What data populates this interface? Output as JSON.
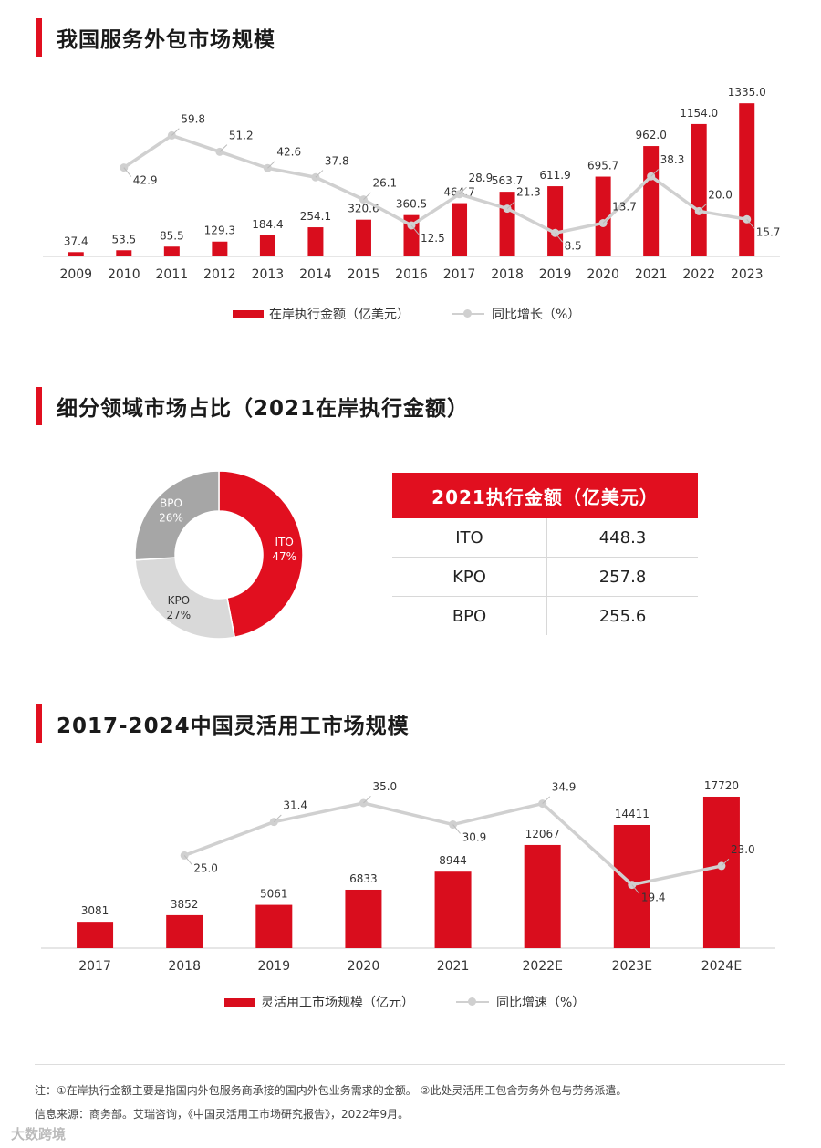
{
  "colors": {
    "accent": "#e10f1f",
    "bar": "#d90d1d",
    "line": "#d0d0d0",
    "grey": "#a6a6a6",
    "light": "#d9d9d9"
  },
  "section1": {
    "title": "我国服务外包市场规模",
    "legend_bar": "在岸执行金额（亿美元）",
    "legend_line": "同比增长（%）"
  },
  "section2": {
    "title": "细分领域市场占比（2021在岸执行金额）",
    "table_header": "2021执行金额（亿美元）",
    "rows": [
      {
        "label": "ITO",
        "value": "448.3"
      },
      {
        "label": "KPO",
        "value": "257.8"
      },
      {
        "label": "BPO",
        "value": "255.6"
      }
    ]
  },
  "section3": {
    "title": "2017-2024中国灵活用工市场规模",
    "legend_bar": "灵活用工市场规模（亿元）",
    "legend_line": "同比增速（%）"
  },
  "footer": {
    "note1": "注：①在岸执行金额主要是指国内外包服务商承接的国内外包业务需求的金额。 ②此处灵活用工包含劳务外包与劳务派遣。",
    "note2": "信息来源：商务部。艾瑞咨询，《中国灵活用工市场研究报告》，2022年9月。",
    "watermark": "大数跨境"
  },
  "chart_data": [
    {
      "type": "bar",
      "title": "我国服务外包市场规模",
      "categories": [
        "2009",
        "2010",
        "2011",
        "2012",
        "2013",
        "2014",
        "2015",
        "2016",
        "2017",
        "2018",
        "2019",
        "2020",
        "2021",
        "2022",
        "2023"
      ],
      "series": [
        {
          "name": "在岸执行金额（亿美元）",
          "kind": "bar",
          "values": [
            37.4,
            53.5,
            85.5,
            129.3,
            184.4,
            254.1,
            320.6,
            360.5,
            464.7,
            563.7,
            611.9,
            695.7,
            962.0,
            1154.0,
            1335.0
          ],
          "labels": [
            "37.4",
            "53.5",
            "85.5",
            "129.3",
            "184.4",
            "254.1",
            "320.6",
            "360.5",
            "464.7",
            "563.7",
            "611.9",
            "695.7",
            "962.0",
            "1154.0",
            "1335.0"
          ]
        },
        {
          "name": "同比增长（%）",
          "kind": "line",
          "values": [
            null,
            42.9,
            59.8,
            51.2,
            42.6,
            37.8,
            26.1,
            12.5,
            28.9,
            21.3,
            8.5,
            13.7,
            38.3,
            20.0,
            15.7
          ],
          "labels": [
            "",
            "42.9",
            "59.8",
            "51.2",
            "42.6",
            "37.8",
            "26.1",
            "12.5",
            "28.9",
            "21.3",
            "8.5",
            "13.7",
            "38.3",
            "20.0",
            "15.7"
          ]
        }
      ],
      "ylim": [
        0,
        1400
      ]
    },
    {
      "type": "pie",
      "title": "细分领域市场占比（2021在岸执行金额）",
      "slices": [
        {
          "label": "ITO",
          "percent": "47%",
          "value": 47
        },
        {
          "label": "KPO",
          "percent": "27%",
          "value": 27
        },
        {
          "label": "BPO",
          "percent": "26%",
          "value": 26
        }
      ]
    },
    {
      "type": "bar",
      "title": "2017-2024中国灵活用工市场规模",
      "categories": [
        "2017",
        "2018",
        "2019",
        "2020",
        "2021",
        "2022E",
        "2023E",
        "2024E"
      ],
      "series": [
        {
          "name": "灵活用工市场规模（亿元）",
          "kind": "bar",
          "values": [
            3081,
            3852,
            5061,
            6833,
            8944,
            12067,
            14411,
            17720
          ],
          "labels": [
            "3081",
            "3852",
            "5061",
            "6833",
            "8944",
            "12067",
            "14411",
            "17720"
          ]
        },
        {
          "name": "同比增速（%）",
          "kind": "line",
          "values": [
            null,
            25.0,
            31.4,
            35.0,
            30.9,
            34.9,
            19.4,
            23.0
          ],
          "labels": [
            "",
            "25.0",
            "31.4",
            "35.0",
            "30.9",
            "34.9",
            "19.4",
            "23.0"
          ]
        }
      ],
      "ylim": [
        0,
        19000
      ]
    }
  ]
}
